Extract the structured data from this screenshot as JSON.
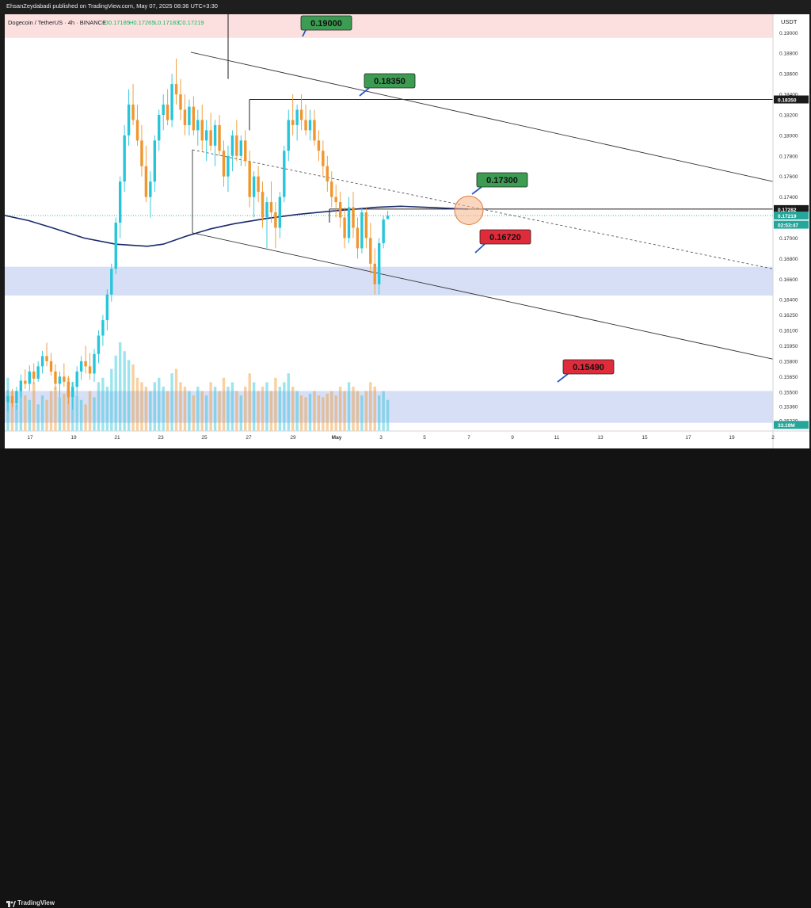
{
  "header": {
    "publisher": "EhsanZeydabadi published on TradingView.com, May 07, 2025 08:36 UTC+3:30"
  },
  "legend": {
    "symbol": "Dogecoin / TetherUS · 4h · BINANCE",
    "open": "O0.17185",
    "high": "H0.17265",
    "low": "L0.17183",
    "close": "C0.17219",
    "currency": "USDT"
  },
  "footer": {
    "brand": "TradingView"
  },
  "colors": {
    "up": "#26c6da",
    "down": "#f0962e",
    "ma": "#1b2a6b",
    "zone_red": "#fbdada",
    "zone_blue": "#cfd9f5",
    "label_green": "#3c9c52",
    "label_red": "#e02b3b"
  },
  "chart_data": {
    "type": "candlestick",
    "title": "Dogecoin / TetherUS · 4h · BINANCE",
    "ylabel": "USDT",
    "ylim": [
      0.1512,
      0.1918
    ],
    "y_ticks": [
      "0.19000",
      "0.18800",
      "0.18600",
      "0.18400",
      "0.18200",
      "0.18000",
      "0.17800",
      "0.17600",
      "0.17400",
      "0.17200",
      "0.17000",
      "0.16800",
      "0.16600",
      "0.16400",
      "0.16250",
      "0.16100",
      "0.15950",
      "0.15800",
      "0.15650",
      "0.15500",
      "0.15360",
      "0.15220"
    ],
    "x_ticks": [
      "17",
      "19",
      "21",
      "23",
      "25",
      "27",
      "29",
      "May",
      "3",
      "5",
      "7",
      "9",
      "11",
      "13",
      "15",
      "17",
      "19",
      "2"
    ],
    "price_tags": [
      {
        "label": "0.18350",
        "value": 0.1835,
        "style": "black"
      },
      {
        "label": "0.17282",
        "value": 0.17282,
        "style": "black"
      },
      {
        "label": "0.17219",
        "value": 0.17219,
        "style": "teal"
      },
      {
        "label": "02:53:47",
        "value": 0.1713,
        "style": "teal"
      },
      {
        "label": "33.19M",
        "value": 0.1518,
        "style": "teal"
      }
    ],
    "annotations": [
      {
        "text": "0.19000",
        "color": "green"
      },
      {
        "text": "0.18350",
        "color": "green"
      },
      {
        "text": "0.17300",
        "color": "green"
      },
      {
        "text": "0.16720",
        "color": "red"
      },
      {
        "text": "0.15490",
        "color": "red"
      }
    ],
    "zones": [
      {
        "from": 0.1895,
        "to": 0.192,
        "color": "red"
      },
      {
        "from": 0.1644,
        "to": 0.1672,
        "color": "blue"
      },
      {
        "from": 0.152,
        "to": 0.1551,
        "color": "blue"
      }
    ],
    "horizontal_lines": [
      0.1835,
      0.17282
    ],
    "channel": {
      "upper": [
        {
          "x": 24.6,
          "y": 0.1881
        },
        {
          "x": 20.95,
          "y": 0.1754
        }
      ],
      "lower": [
        {
          "x": 24.6,
          "y": 0.1705
        },
        {
          "x": 20.95,
          "y": 0.1581
        }
      ],
      "mid": [
        {
          "x": 24.6,
          "y": 0.1786
        },
        {
          "x": 20.95,
          "y": 0.1669
        }
      ]
    },
    "candles": [
      [
        0.154,
        0.1552,
        0.1531,
        0.1546
      ],
      [
        0.1546,
        0.1553,
        0.1535,
        0.1539
      ],
      [
        0.1539,
        0.1555,
        0.1533,
        0.1551
      ],
      [
        0.1551,
        0.1567,
        0.1545,
        0.1561
      ],
      [
        0.1561,
        0.1572,
        0.1553,
        0.1558
      ],
      [
        0.1558,
        0.1576,
        0.1551,
        0.157
      ],
      [
        0.157,
        0.1578,
        0.1558,
        0.1563
      ],
      [
        0.1563,
        0.158,
        0.156,
        0.1575
      ],
      [
        0.1575,
        0.159,
        0.1568,
        0.1585
      ],
      [
        0.1585,
        0.1598,
        0.1575,
        0.158
      ],
      [
        0.158,
        0.1588,
        0.1566,
        0.157
      ],
      [
        0.157,
        0.1577,
        0.1552,
        0.1558
      ],
      [
        0.1558,
        0.157,
        0.1545,
        0.1565
      ],
      [
        0.1565,
        0.1578,
        0.1555,
        0.156
      ],
      [
        0.156,
        0.1566,
        0.1538,
        0.1545
      ],
      [
        0.1545,
        0.156,
        0.1533,
        0.1555
      ],
      [
        0.1555,
        0.1575,
        0.1547,
        0.157
      ],
      [
        0.157,
        0.1585,
        0.1562,
        0.158
      ],
      [
        0.158,
        0.1595,
        0.1568,
        0.1575
      ],
      [
        0.1575,
        0.1588,
        0.1562,
        0.1568
      ],
      [
        0.1568,
        0.1592,
        0.156,
        0.1587
      ],
      [
        0.1587,
        0.161,
        0.1578,
        0.1605
      ],
      [
        0.1605,
        0.1625,
        0.1595,
        0.162
      ],
      [
        0.162,
        0.165,
        0.161,
        0.1645
      ],
      [
        0.1645,
        0.1675,
        0.1638,
        0.167
      ],
      [
        0.167,
        0.172,
        0.1665,
        0.1715
      ],
      [
        0.1715,
        0.176,
        0.17,
        0.1755
      ],
      [
        0.1755,
        0.181,
        0.1745,
        0.18
      ],
      [
        0.18,
        0.1845,
        0.179,
        0.183
      ],
      [
        0.183,
        0.185,
        0.181,
        0.1815
      ],
      [
        0.1815,
        0.183,
        0.179,
        0.1795
      ],
      [
        0.1795,
        0.181,
        0.176,
        0.177
      ],
      [
        0.177,
        0.179,
        0.1735,
        0.174
      ],
      [
        0.174,
        0.1765,
        0.172,
        0.1755
      ],
      [
        0.1755,
        0.18,
        0.1745,
        0.1795
      ],
      [
        0.1795,
        0.1825,
        0.1785,
        0.182
      ],
      [
        0.182,
        0.184,
        0.1805,
        0.183
      ],
      [
        0.183,
        0.1845,
        0.181,
        0.1815
      ],
      [
        0.1815,
        0.186,
        0.1808,
        0.185
      ],
      [
        0.185,
        0.1875,
        0.183,
        0.184
      ],
      [
        0.184,
        0.1855,
        0.1815,
        0.1825
      ],
      [
        0.1825,
        0.184,
        0.18,
        0.181
      ],
      [
        0.181,
        0.1835,
        0.18,
        0.1828
      ],
      [
        0.1828,
        0.1838,
        0.18,
        0.1805
      ],
      [
        0.1805,
        0.1825,
        0.179,
        0.1815
      ],
      [
        0.1815,
        0.183,
        0.1785,
        0.1795
      ],
      [
        0.1795,
        0.1815,
        0.1775,
        0.1805
      ],
      [
        0.1805,
        0.1822,
        0.1785,
        0.179
      ],
      [
        0.179,
        0.1815,
        0.177,
        0.181
      ],
      [
        0.181,
        0.182,
        0.178,
        0.1785
      ],
      [
        0.1785,
        0.1795,
        0.175,
        0.176
      ],
      [
        0.176,
        0.179,
        0.1745,
        0.178
      ],
      [
        0.178,
        0.1805,
        0.1765,
        0.18
      ],
      [
        0.18,
        0.1815,
        0.1775,
        0.178
      ],
      [
        0.178,
        0.18,
        0.177,
        0.1795
      ],
      [
        0.1795,
        0.1805,
        0.177,
        0.1775
      ],
      [
        0.1775,
        0.1785,
        0.173,
        0.174
      ],
      [
        0.174,
        0.1765,
        0.172,
        0.176
      ],
      [
        0.176,
        0.177,
        0.1735,
        0.1745
      ],
      [
        0.1745,
        0.1755,
        0.171,
        0.172
      ],
      [
        0.172,
        0.174,
        0.169,
        0.1735
      ],
      [
        0.1735,
        0.1755,
        0.1715,
        0.1725
      ],
      [
        0.1725,
        0.1735,
        0.169,
        0.171
      ],
      [
        0.171,
        0.1745,
        0.17,
        0.174
      ],
      [
        0.174,
        0.179,
        0.1735,
        0.1785
      ],
      [
        0.1785,
        0.1825,
        0.1775,
        0.1815
      ],
      [
        0.1815,
        0.184,
        0.18,
        0.181
      ],
      [
        0.181,
        0.183,
        0.1795,
        0.1825
      ],
      [
        0.1825,
        0.184,
        0.1805,
        0.1815
      ],
      [
        0.1815,
        0.183,
        0.18,
        0.1805
      ],
      [
        0.1805,
        0.1825,
        0.1795,
        0.1815
      ],
      [
        0.1815,
        0.1825,
        0.179,
        0.1795
      ],
      [
        0.1795,
        0.1805,
        0.1775,
        0.1785
      ],
      [
        0.1785,
        0.1795,
        0.176,
        0.177
      ],
      [
        0.177,
        0.178,
        0.1745,
        0.1755
      ],
      [
        0.1755,
        0.1765,
        0.173,
        0.174
      ],
      [
        0.174,
        0.1752,
        0.172,
        0.1735
      ],
      [
        0.1735,
        0.1745,
        0.171,
        0.172
      ],
      [
        0.172,
        0.173,
        0.169,
        0.17
      ],
      [
        0.17,
        0.174,
        0.1695,
        0.173
      ],
      [
        0.173,
        0.1745,
        0.17,
        0.171
      ],
      [
        0.171,
        0.172,
        0.168,
        0.169
      ],
      [
        0.169,
        0.173,
        0.1685,
        0.1725
      ],
      [
        0.1725,
        0.173,
        0.169,
        0.17
      ],
      [
        0.17,
        0.1715,
        0.1665,
        0.1675
      ],
      [
        0.1675,
        0.169,
        0.1645,
        0.1655
      ],
      [
        0.1655,
        0.17,
        0.1645,
        0.1695
      ],
      [
        0.1695,
        0.1722,
        0.169,
        0.1718
      ],
      [
        0.17185,
        0.17265,
        0.17183,
        0.17219
      ]
    ],
    "volumes": [
      0.6,
      0.45,
      0.3,
      0.5,
      0.4,
      0.35,
      0.55,
      0.3,
      0.4,
      0.35,
      0.45,
      0.5,
      0.38,
      0.42,
      0.6,
      0.55,
      0.4,
      0.35,
      0.3,
      0.45,
      0.38,
      0.55,
      0.6,
      0.5,
      0.7,
      0.85,
      1.0,
      0.9,
      0.8,
      0.75,
      0.6,
      0.55,
      0.5,
      0.45,
      0.55,
      0.6,
      0.5,
      0.45,
      0.65,
      0.7,
      0.55,
      0.5,
      0.45,
      0.4,
      0.5,
      0.45,
      0.4,
      0.55,
      0.5,
      0.45,
      0.6,
      0.5,
      0.55,
      0.45,
      0.4,
      0.5,
      0.65,
      0.55,
      0.45,
      0.5,
      0.55,
      0.45,
      0.6,
      0.5,
      0.55,
      0.65,
      0.5,
      0.45,
      0.4,
      0.38,
      0.42,
      0.45,
      0.4,
      0.38,
      0.42,
      0.45,
      0.4,
      0.5,
      0.45,
      0.55,
      0.5,
      0.45,
      0.4,
      0.45,
      0.55,
      0.5,
      0.4,
      0.45,
      0.35
    ]
  }
}
